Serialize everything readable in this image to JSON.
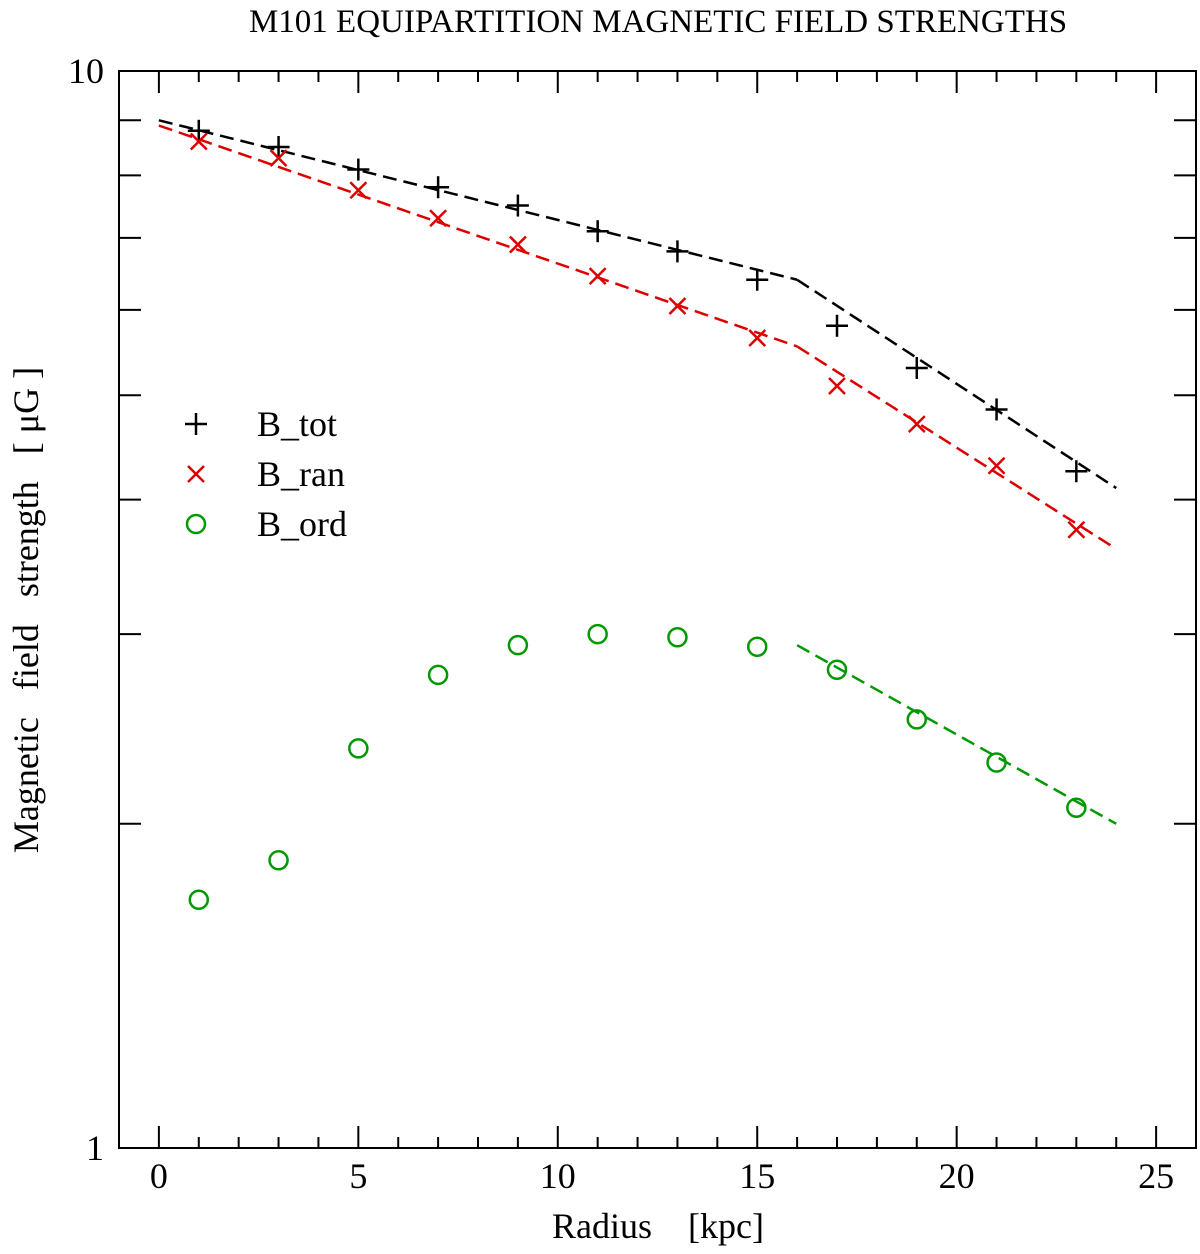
{
  "chart_data": {
    "type": "scatter",
    "title": "M101   EQUIPARTITION  MAGNETIC  FIELD  STRENGTHS",
    "xlabel": "Radius    [kpc]",
    "ylabel": "Magnetic   field   strength   [ μG ]",
    "xlim": [
      -1,
      26
    ],
    "ylim": [
      1,
      10
    ],
    "yscale": "log",
    "x_ticks": [
      0,
      5,
      10,
      15,
      20,
      25
    ],
    "x_tick_labels": [
      "0",
      "5",
      "10",
      "15",
      "20",
      "25"
    ],
    "y_ticks": [
      1,
      10
    ],
    "y_tick_labels": [
      "1",
      "10"
    ],
    "y_minor_ticks": [
      2,
      3,
      4,
      5,
      6,
      7,
      8,
      9
    ],
    "legend_position": "middle-left",
    "series": [
      {
        "name": "B_tot",
        "marker": "plus",
        "color": "#000000",
        "x": [
          1,
          3,
          5,
          7,
          9,
          11,
          13,
          15,
          17,
          19,
          21,
          23
        ],
        "values": [
          8.8,
          8.5,
          8.1,
          7.8,
          7.5,
          7.1,
          6.8,
          6.4,
          5.8,
          5.3,
          4.85,
          4.25
        ],
        "fit": [
          {
            "x": [
              0,
              16
            ],
            "values": [
              9.0,
              6.4
            ]
          },
          {
            "x": [
              16,
              24
            ],
            "values": [
              6.4,
              4.1
            ]
          }
        ]
      },
      {
        "name": "B_ran",
        "marker": "cross",
        "color": "#dd0000",
        "x": [
          1,
          3,
          5,
          7,
          9,
          11,
          13,
          15,
          17,
          19,
          21,
          23
        ],
        "values": [
          8.6,
          8.3,
          7.75,
          7.3,
          6.9,
          6.45,
          6.05,
          5.65,
          5.1,
          4.7,
          4.3,
          3.75
        ],
        "fit": [
          {
            "x": [
              0,
              16
            ],
            "values": [
              8.9,
              5.55
            ]
          },
          {
            "x": [
              16,
              24
            ],
            "values": [
              5.55,
              3.6
            ]
          }
        ]
      },
      {
        "name": "B_ord",
        "marker": "circle",
        "color": "#009900",
        "x": [
          1,
          3,
          5,
          7,
          9,
          11,
          13,
          15,
          17,
          19,
          21,
          23
        ],
        "values": [
          1.7,
          1.85,
          2.35,
          2.75,
          2.93,
          3.0,
          2.98,
          2.92,
          2.78,
          2.5,
          2.28,
          2.07
        ],
        "fit": [
          {
            "x": [
              16,
              24
            ],
            "values": [
              2.93,
              2.0
            ]
          }
        ]
      }
    ]
  }
}
